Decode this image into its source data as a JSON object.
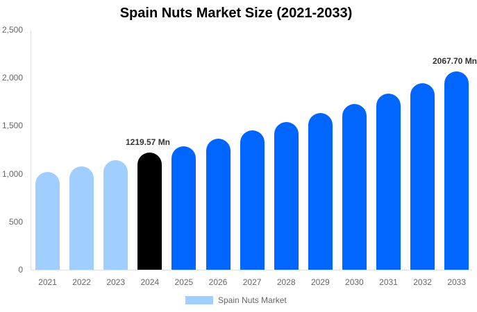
{
  "chart_data": {
    "type": "bar",
    "title": "Spain Nuts Market Size (2021-2033)",
    "xlabel": "",
    "ylabel": "",
    "ylim": [
      0,
      2500
    ],
    "yticks": [
      "0",
      "500",
      "1,000",
      "1,500",
      "2,000",
      "2,500"
    ],
    "categories": [
      "2021",
      "2022",
      "2023",
      "2024",
      "2025",
      "2026",
      "2027",
      "2028",
      "2029",
      "2030",
      "2031",
      "2032",
      "2033"
    ],
    "series": [
      {
        "name": "Spain Nuts Market",
        "values": [
          1019,
          1077,
          1142,
          1219.57,
          1286,
          1366,
          1452,
          1539,
          1633,
          1727,
          1835,
          1944,
          2067.7
        ]
      }
    ],
    "bar_colors": [
      "#a0cfff",
      "#a0cfff",
      "#a0cfff",
      "#000000",
      "#0066ff",
      "#0066ff",
      "#0066ff",
      "#0066ff",
      "#0066ff",
      "#0066ff",
      "#0066ff",
      "#0066ff",
      "#0066ff"
    ],
    "annotations": [
      {
        "category": "2024",
        "text": "1219.57 Mn"
      },
      {
        "category": "2033",
        "text": "2067.70 Mn"
      }
    ],
    "legend": {
      "position": "bottom",
      "entries": [
        "Spain Nuts Market"
      ]
    },
    "grid": false
  },
  "header": {
    "title": "Spain Nuts Market Size (2021-2033)"
  },
  "legend": {
    "label": "Spain Nuts Market",
    "color": "#a0cfff"
  },
  "labels": {
    "l2024": "1219.57 Mn",
    "l2033": "2067.70 Mn"
  }
}
